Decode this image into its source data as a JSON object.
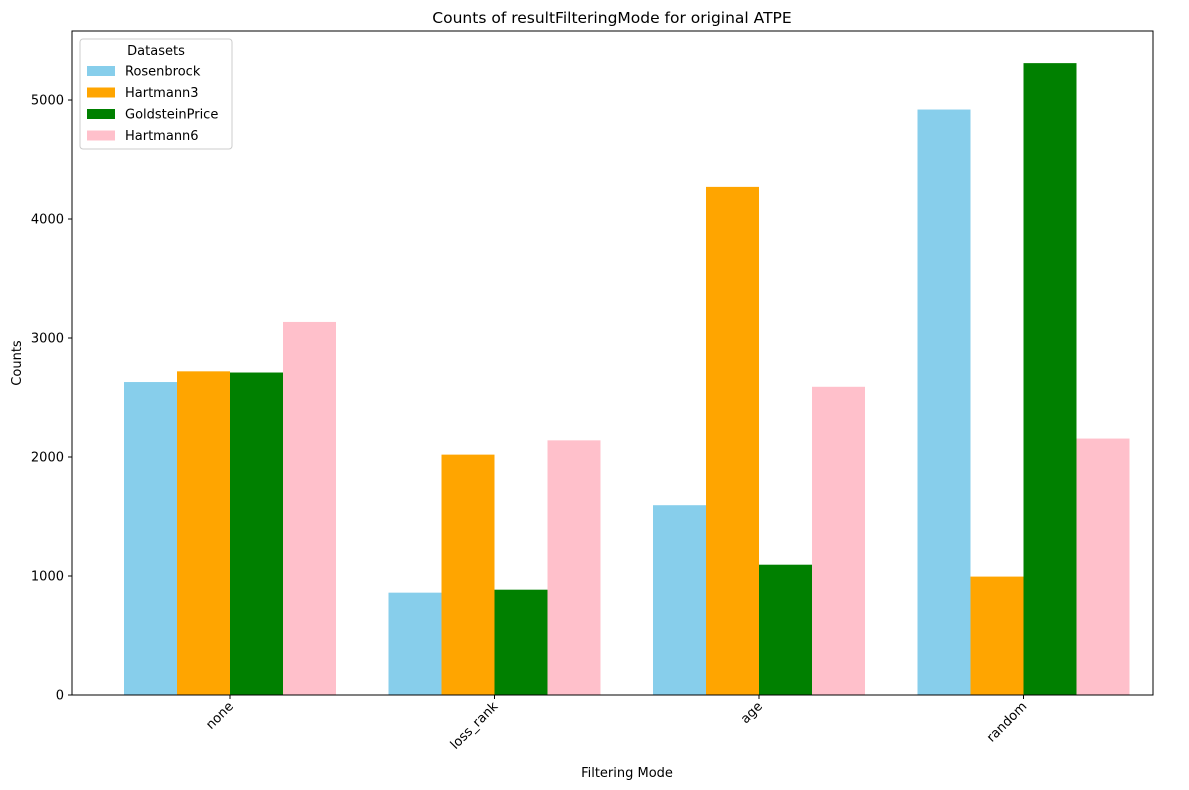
{
  "chart_data": {
    "type": "bar",
    "title": "Counts of resultFilteringMode for original ATPE",
    "xlabel": "Filtering Mode",
    "ylabel": "Counts",
    "categories": [
      "none",
      "loss_rank",
      "age",
      "random"
    ],
    "ylim": [
      0,
      5580
    ],
    "yticks": [
      0,
      1000,
      2000,
      3000,
      4000,
      5000
    ],
    "legend_title": "Datasets",
    "legend_position": "top-left",
    "series": [
      {
        "name": "Rosenbrock",
        "color": "#87ceeb",
        "values": [
          2630,
          860,
          1595,
          4920
        ]
      },
      {
        "name": "Hartmann3",
        "color": "#ffa500",
        "values": [
          2720,
          2020,
          4270,
          995
        ]
      },
      {
        "name": "GoldsteinPrice",
        "color": "#008000",
        "values": [
          2710,
          885,
          1095,
          5310
        ]
      },
      {
        "name": "Hartmann6",
        "color": "#ffc0cb",
        "values": [
          3135,
          2140,
          2590,
          2155
        ]
      }
    ]
  }
}
